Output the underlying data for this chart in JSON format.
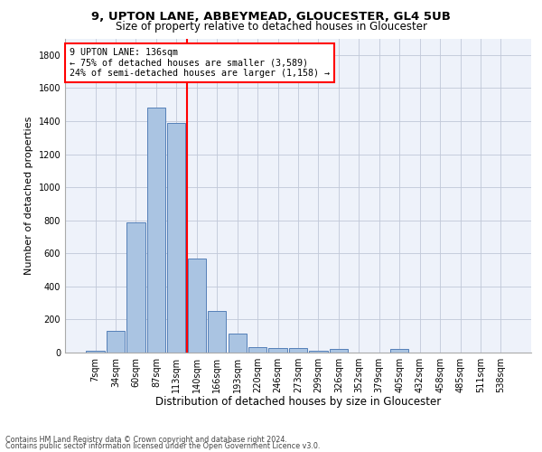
{
  "title1": "9, UPTON LANE, ABBEYMEAD, GLOUCESTER, GL4 5UB",
  "title2": "Size of property relative to detached houses in Gloucester",
  "xlabel": "Distribution of detached houses by size in Gloucester",
  "ylabel": "Number of detached properties",
  "bin_labels": [
    "7sqm",
    "34sqm",
    "60sqm",
    "87sqm",
    "113sqm",
    "140sqm",
    "166sqm",
    "193sqm",
    "220sqm",
    "246sqm",
    "273sqm",
    "299sqm",
    "326sqm",
    "352sqm",
    "379sqm",
    "405sqm",
    "432sqm",
    "458sqm",
    "485sqm",
    "511sqm",
    "538sqm"
  ],
  "bar_heights": [
    10,
    130,
    790,
    1480,
    1390,
    570,
    250,
    115,
    35,
    30,
    30,
    10,
    20,
    0,
    0,
    20,
    0,
    0,
    0,
    0,
    0
  ],
  "bar_color": "#aac4e2",
  "bar_edge_color": "#5580b8",
  "vline_color": "red",
  "annotation_text": "9 UPTON LANE: 136sqm\n← 75% of detached houses are smaller (3,589)\n24% of semi-detached houses are larger (1,158) →",
  "annotation_box_color": "white",
  "annotation_box_edge": "red",
  "footer1": "Contains HM Land Registry data © Crown copyright and database right 2024.",
  "footer2": "Contains public sector information licensed under the Open Government Licence v3.0.",
  "bg_color": "#eef2fa",
  "grid_color": "#c0c8d8",
  "ylim": [
    0,
    1900
  ],
  "yticks": [
    0,
    200,
    400,
    600,
    800,
    1000,
    1200,
    1400,
    1600,
    1800
  ],
  "title1_fontsize": 9.5,
  "title2_fontsize": 8.5,
  "ylabel_fontsize": 8,
  "xlabel_fontsize": 8.5,
  "tick_fontsize": 7,
  "footer_fontsize": 5.8
}
